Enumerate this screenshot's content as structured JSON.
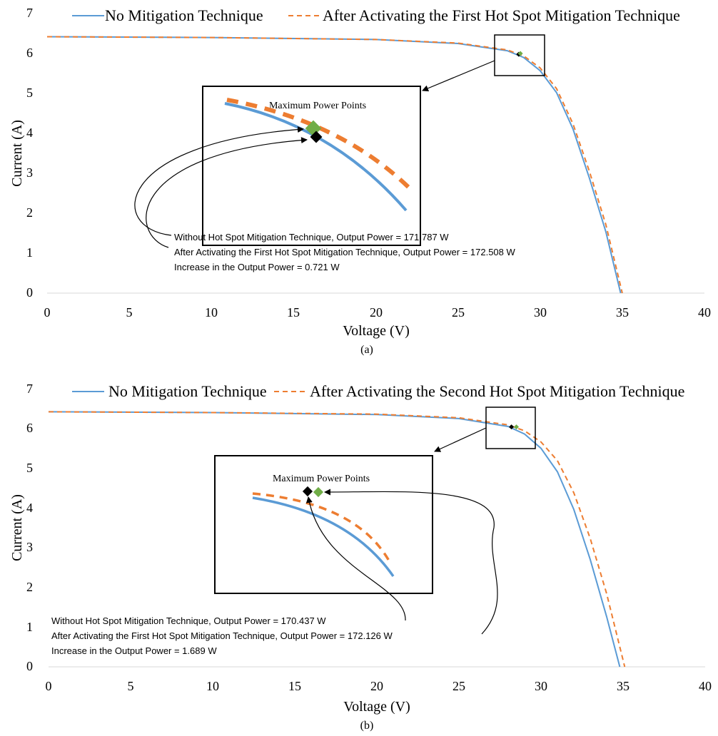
{
  "colors": {
    "no_mitigation": "#5b9bd5",
    "after": "#ed7d31",
    "mpp_without": "#000000",
    "mpp_after": "#70ad47"
  },
  "chart_data": [
    {
      "type": "line",
      "caption": "(a)",
      "xlabel": "Voltage (V)",
      "ylabel": "Current (A)",
      "xlim": [
        0,
        40
      ],
      "ylim": [
        0,
        7
      ],
      "xticks": [
        "0",
        "5",
        "10",
        "15",
        "20",
        "25",
        "30",
        "35",
        "40"
      ],
      "yticks": [
        "0",
        "1",
        "2",
        "3",
        "4",
        "5",
        "6",
        "7"
      ],
      "legend_position": "top",
      "series": [
        {
          "name": "No Mitigation Technique",
          "style": "solid",
          "isc": 6.42,
          "voc": 34.9,
          "points": [
            [
              0,
              6.42
            ],
            [
              10,
              6.4
            ],
            [
              20,
              6.35
            ],
            [
              25,
              6.25
            ],
            [
              28,
              6.07
            ],
            [
              29,
              5.9
            ],
            [
              30,
              5.57
            ],
            [
              31,
              5.02
            ],
            [
              32,
              4.11
            ],
            [
              33,
              2.88
            ],
            [
              34,
              1.54
            ],
            [
              34.9,
              0
            ]
          ]
        },
        {
          "name": "After Activating the First Hot Spot Mitigation Technique",
          "style": "dashed",
          "isc": 6.42,
          "voc": 35.0,
          "points": [
            [
              0,
              6.42
            ],
            [
              10,
              6.4
            ],
            [
              20,
              6.35
            ],
            [
              25,
              6.26
            ],
            [
              28,
              6.09
            ],
            [
              29,
              5.94
            ],
            [
              30,
              5.64
            ],
            [
              31,
              5.12
            ],
            [
              32,
              4.24
            ],
            [
              33,
              3.05
            ],
            [
              34,
              1.72
            ],
            [
              35,
              0
            ]
          ]
        }
      ],
      "inset_title": "Maximum Power Points",
      "mpp": [
        {
          "v": 28.7,
          "i": 5.98
        },
        {
          "v": 28.8,
          "i": 6.0
        }
      ],
      "annotations": [
        "Without Hot Spot Mitigation Technique, Output Power = 171.787 W",
        "After Activating the First Hot Spot Mitigation Technique, Output Power = 172.508 W",
        "Increase in the Output Power = 0.721 W"
      ]
    },
    {
      "type": "line",
      "caption": "(b)",
      "xlabel": "Voltage (V)",
      "ylabel": "Current (A)",
      "xlim": [
        0,
        40
      ],
      "ylim": [
        0,
        7
      ],
      "xticks": [
        "0",
        "5",
        "10",
        "15",
        "20",
        "25",
        "30",
        "35",
        "40"
      ],
      "yticks": [
        "0",
        "1",
        "2",
        "3",
        "4",
        "5",
        "6",
        "7"
      ],
      "legend_position": "top",
      "series": [
        {
          "name": "No Mitigation Technique",
          "style": "solid",
          "isc": 6.42,
          "voc": 34.8,
          "points": [
            [
              0,
              6.42
            ],
            [
              10,
              6.4
            ],
            [
              20,
              6.35
            ],
            [
              25,
              6.25
            ],
            [
              28,
              6.05
            ],
            [
              29,
              5.86
            ],
            [
              30,
              5.5
            ],
            [
              31,
              4.91
            ],
            [
              32,
              3.96
            ],
            [
              33,
              2.7
            ],
            [
              34,
              1.26
            ],
            [
              34.8,
              0
            ]
          ]
        },
        {
          "name": "After Activating the Second Hot Spot Mitigation Technique",
          "style": "dashed",
          "isc": 6.42,
          "voc": 35.1,
          "points": [
            [
              0,
              6.42
            ],
            [
              10,
              6.4
            ],
            [
              20,
              6.36
            ],
            [
              25,
              6.27
            ],
            [
              28,
              6.09
            ],
            [
              29,
              5.94
            ],
            [
              30,
              5.66
            ],
            [
              31,
              5.19
            ],
            [
              32,
              4.38
            ],
            [
              33,
              3.23
            ],
            [
              34,
              1.84
            ],
            [
              35.1,
              0
            ]
          ]
        }
      ],
      "inset_title": "Maximum Power Points",
      "mpp": [
        {
          "v": 28.2,
          "i": 6.04
        },
        {
          "v": 28.5,
          "i": 6.04
        }
      ],
      "annotations": [
        "Without Hot Spot Mitigation Technique, Output Power = 170.437 W",
        "After Activating the First Hot Spot Mitigation Technique, Output Power = 172.126 W",
        "Increase in the Output Power = 1.689 W"
      ]
    }
  ]
}
